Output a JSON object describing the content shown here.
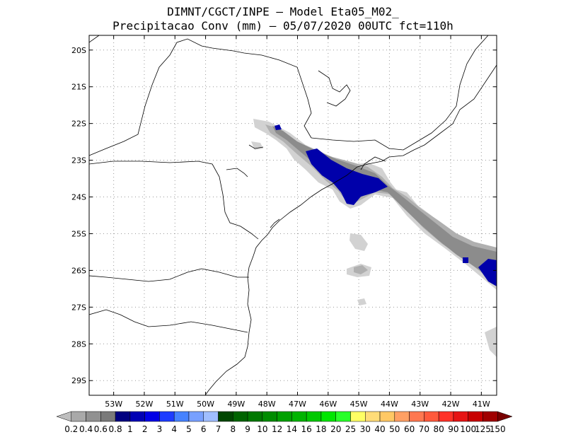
{
  "title": {
    "line1": "DIMNT/CGCT/INPE –  Model Eta05_M02_",
    "line2": "Precipitacao Conv (mm) – 05/07/2020 00UTC fct=110h"
  },
  "map": {
    "lon_range": [
      -53.8,
      -40.5
    ],
    "lat_range": [
      -29.4,
      -19.6
    ],
    "lon_ticks": [
      -53,
      -52,
      -51,
      -50,
      -49,
      -48,
      -47,
      -46,
      -45,
      -44,
      -43,
      -42,
      -41
    ],
    "lon_labels": [
      "53W",
      "52W",
      "51W",
      "50W",
      "49W",
      "48W",
      "47W",
      "46W",
      "45W",
      "44W",
      "43W",
      "42W",
      "41W"
    ],
    "lat_ticks": [
      -20,
      -21,
      -22,
      -23,
      -24,
      -25,
      -26,
      -27,
      -28,
      -29
    ],
    "lat_labels": [
      "20S",
      "21S",
      "22S",
      "23S",
      "24S",
      "25S",
      "26S",
      "27S",
      "28S",
      "29S"
    ],
    "grid": true
  },
  "colorbar": {
    "labels": [
      "0.2",
      "0.4",
      "0.6",
      "0.8",
      "1",
      "2",
      "3",
      "4",
      "5",
      "6",
      "7",
      "8",
      "9",
      "10",
      "12",
      "14",
      "16",
      "18",
      "20",
      "25",
      "30",
      "40",
      "50",
      "60",
      "70",
      "80",
      "90",
      "100",
      "125",
      "150"
    ],
    "colors": [
      "#bebebe",
      "#a9a9a9",
      "#919191",
      "#7a7a7a",
      "#000080",
      "#0000b4",
      "#0000e6",
      "#1e3cff",
      "#4682ff",
      "#78a0ff",
      "#a0beff",
      "#004600",
      "#006400",
      "#007800",
      "#008c00",
      "#00a000",
      "#00b400",
      "#00c800",
      "#00e600",
      "#28ff28",
      "#ffff64",
      "#ffdc78",
      "#ffc864",
      "#ffa064",
      "#ff7850",
      "#ff5a3c",
      "#ff3228",
      "#e61414",
      "#c80000",
      "#a00000",
      "#780000"
    ]
  },
  "precip_colors": {
    "light": "#d2d2d2",
    "mid": "#b0b0b0",
    "dark": "#8c8c8c",
    "heavy": "#0000aa"
  }
}
